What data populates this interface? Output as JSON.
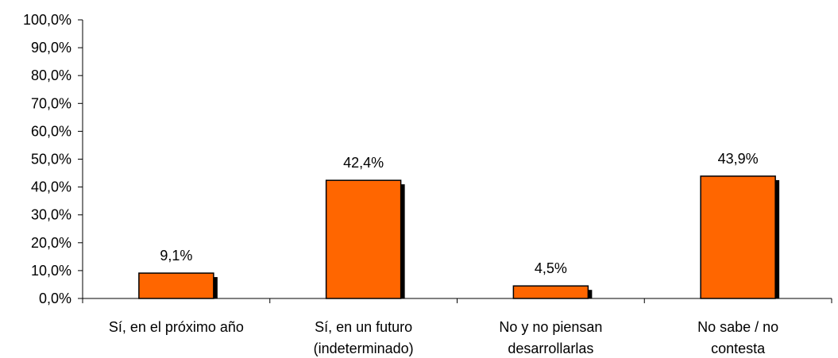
{
  "chart_data": {
    "type": "bar",
    "title": "",
    "xlabel": "",
    "ylabel": "",
    "categories": [
      [
        "Sí, en el próximo año"
      ],
      [
        "Sí, en un futuro",
        "(indeterminado)"
      ],
      [
        "No y no piensan",
        "desarrollarlas"
      ],
      [
        "No  sabe / no",
        "contesta"
      ]
    ],
    "values": [
      9.1,
      42.4,
      4.5,
      43.9
    ],
    "value_labels": [
      "9,1%",
      "42,4%",
      "4,5%",
      "43,9%"
    ],
    "ylim": [
      0,
      100
    ],
    "yticks": [
      0,
      10,
      20,
      30,
      40,
      50,
      60,
      70,
      80,
      90,
      100
    ],
    "ytick_labels": [
      "0,0%",
      "10,0%",
      "20,0%",
      "30,0%",
      "40,0%",
      "50,0%",
      "60,0%",
      "70,0%",
      "80,0%",
      "90,0%",
      "100,0%"
    ],
    "grid": false,
    "legend": "none",
    "bar_color": "#ff6600",
    "bar_shadow_color": "#000000"
  }
}
